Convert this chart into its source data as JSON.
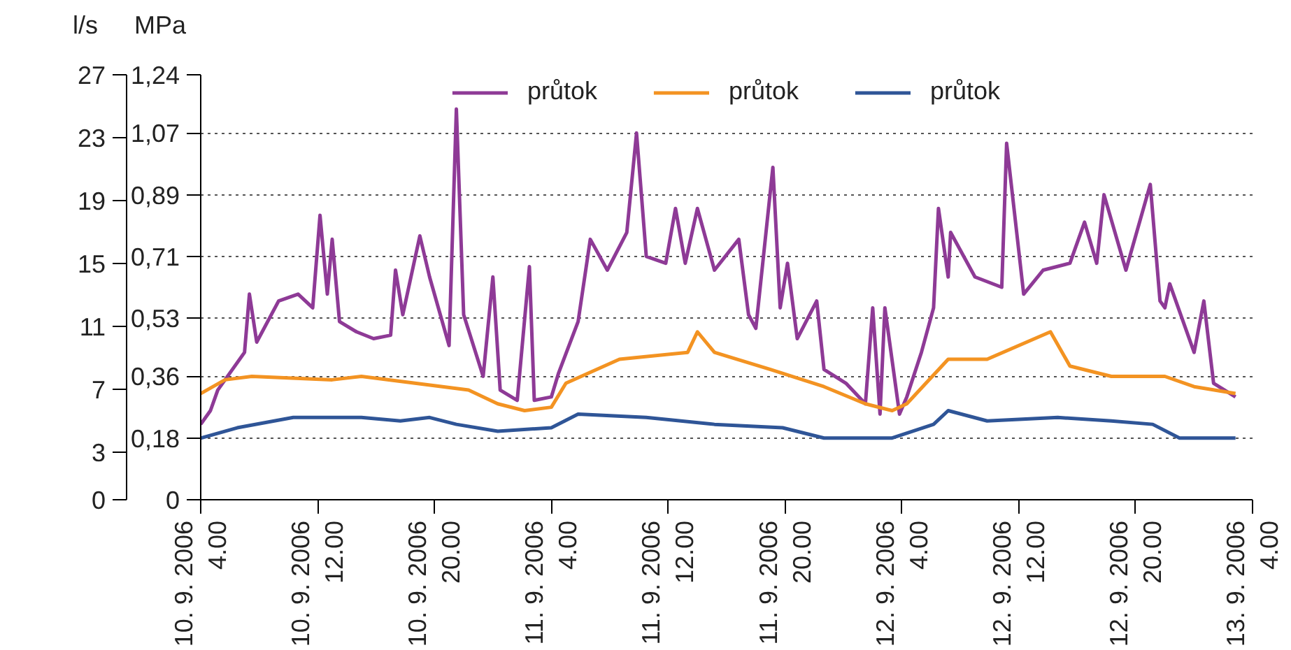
{
  "chart_data": {
    "type": "line",
    "ylabel": "MPa",
    "y2label": "l/s",
    "ylim": [
      0,
      1.24
    ],
    "yticks": [
      0,
      {
        "value": 0.18,
        "label": "0,18"
      },
      {
        "value": 0.36,
        "label": "0,36"
      },
      {
        "value": 0.53,
        "label": "0,53"
      },
      {
        "value": 0.71,
        "label": "0,71"
      },
      {
        "value": 0.89,
        "label": "0,89"
      },
      {
        "value": 1.07,
        "label": "1,07"
      },
      {
        "value": 1.24,
        "label": "1,24"
      }
    ],
    "y2lim": [
      0,
      27
    ],
    "y2ticks": [
      0,
      3,
      7,
      11,
      15,
      19,
      23,
      27
    ],
    "xlim": [
      "2006-09-10T04:00",
      "2006-09-13T04:00"
    ],
    "xticks": [
      {
        "value": "2006-09-10T04:00",
        "label": "10. 9. 2006\n4.00"
      },
      {
        "value": "2006-09-10T12:00",
        "label": "10. 9. 2006\n12.00"
      },
      {
        "value": "2006-09-10T20:00",
        "label": "10. 9. 2006\n20.00"
      },
      {
        "value": "2006-09-11T04:00",
        "label": "11. 9. 2006\n4.00"
      },
      {
        "value": "2006-09-11T12:00",
        "label": "11. 9. 2006\n12.00"
      },
      {
        "value": "2006-09-11T20:00",
        "label": "11. 9. 2006\n20.00"
      },
      {
        "value": "2006-09-12T04:00",
        "label": "12. 9. 2006\n4.00"
      },
      {
        "value": "2006-09-12T12:00",
        "label": "12. 9. 2006\n12.00"
      },
      {
        "value": "2006-09-12T20:00",
        "label": "12. 9. 2006\n20.00"
      },
      {
        "value": "2006-09-13T04:00",
        "label": "13. 9. 2006\n4.00"
      }
    ],
    "grid": "y",
    "legend": "top",
    "line_style": "solid",
    "marker": "none",
    "series": [
      {
        "name": "průtok",
        "color": "#8e3a96",
        "x": [
          "2006-09-10T04:00",
          "2006-09-10T04:40",
          "2006-09-10T05:10",
          "2006-09-10T07:00",
          "2006-09-10T07:20",
          "2006-09-10T07:50",
          "2006-09-10T09:20",
          "2006-09-10T10:40",
          "2006-09-10T11:40",
          "2006-09-10T12:10",
          "2006-09-10T12:40",
          "2006-09-10T13:00",
          "2006-09-10T13:30",
          "2006-09-10T14:40",
          "2006-09-10T15:50",
          "2006-09-10T17:00",
          "2006-09-10T17:20",
          "2006-09-10T17:50",
          "2006-09-10T19:00",
          "2006-09-10T19:40",
          "2006-09-10T21:00",
          "2006-09-10T21:30",
          "2006-09-10T22:00",
          "2006-09-10T23:20",
          "2006-09-11T00:00",
          "2006-09-11T00:30",
          "2006-09-11T01:40",
          "2006-09-11T02:30",
          "2006-09-11T02:50",
          "2006-09-11T04:00",
          "2006-09-11T04:30",
          "2006-09-11T05:50",
          "2006-09-11T06:40",
          "2006-09-11T07:50",
          "2006-09-11T09:10",
          "2006-09-11T09:50",
          "2006-09-11T10:30",
          "2006-09-11T11:50",
          "2006-09-11T12:30",
          "2006-09-11T13:10",
          "2006-09-11T14:00",
          "2006-09-11T15:10",
          "2006-09-11T16:50",
          "2006-09-11T17:30",
          "2006-09-11T18:00",
          "2006-09-11T19:10",
          "2006-09-11T19:40",
          "2006-09-11T20:10",
          "2006-09-11T20:50",
          "2006-09-11T22:10",
          "2006-09-11T22:40",
          "2006-09-12T00:10",
          "2006-09-12T01:30",
          "2006-09-12T02:00",
          "2006-09-12T02:30",
          "2006-09-12T02:50",
          "2006-09-12T03:50",
          "2006-09-12T04:20",
          "2006-09-12T05:20",
          "2006-09-12T06:10",
          "2006-09-12T06:30",
          "2006-09-12T07:10",
          "2006-09-12T07:20",
          "2006-09-12T09:00",
          "2006-09-12T10:50",
          "2006-09-12T11:10",
          "2006-09-12T12:20",
          "2006-09-12T13:40",
          "2006-09-12T15:30",
          "2006-09-12T16:30",
          "2006-09-12T17:20",
          "2006-09-12T17:50",
          "2006-09-12T19:20",
          "2006-09-12T21:00",
          "2006-09-12T21:40",
          "2006-09-12T22:00",
          "2006-09-12T22:20",
          "2006-09-13T00:00",
          "2006-09-13T00:40",
          "2006-09-13T01:20",
          "2006-09-13T02:50"
        ],
        "values": [
          0.22,
          0.26,
          0.32,
          0.43,
          0.6,
          0.46,
          0.58,
          0.6,
          0.56,
          0.83,
          0.6,
          0.76,
          0.52,
          0.49,
          0.47,
          0.48,
          0.67,
          0.54,
          0.77,
          0.65,
          0.45,
          1.14,
          0.54,
          0.36,
          0.65,
          0.32,
          0.29,
          0.68,
          0.29,
          0.3,
          0.37,
          0.52,
          0.76,
          0.67,
          0.78,
          1.07,
          0.71,
          0.69,
          0.85,
          0.69,
          0.85,
          0.67,
          0.76,
          0.54,
          0.5,
          0.97,
          0.56,
          0.69,
          0.47,
          0.58,
          0.38,
          0.34,
          0.28,
          0.56,
          0.25,
          0.56,
          0.25,
          0.3,
          0.43,
          0.56,
          0.85,
          0.65,
          0.78,
          0.65,
          0.62,
          1.04,
          0.6,
          0.67,
          0.69,
          0.81,
          0.69,
          0.89,
          0.67,
          0.92,
          0.58,
          0.56,
          0.63,
          0.43,
          0.58,
          0.34,
          0.3
        ]
      },
      {
        "name": "průtok",
        "color": "#f39322",
        "x": [
          "2006-09-10T04:00",
          "2006-09-10T05:40",
          "2006-09-10T07:30",
          "2006-09-10T13:00",
          "2006-09-10T15:00",
          "2006-09-10T18:40",
          "2006-09-10T22:20",
          "2006-09-11T00:20",
          "2006-09-11T02:10",
          "2006-09-11T04:00",
          "2006-09-11T05:00",
          "2006-09-11T08:40",
          "2006-09-11T13:20",
          "2006-09-11T14:00",
          "2006-09-11T15:10",
          "2006-09-11T19:00",
          "2006-09-11T22:40",
          "2006-09-12T01:30",
          "2006-09-12T03:20",
          "2006-09-12T04:20",
          "2006-09-12T07:10",
          "2006-09-12T09:50",
          "2006-09-12T14:10",
          "2006-09-12T15:30",
          "2006-09-12T18:20",
          "2006-09-12T22:00",
          "2006-09-13T00:00",
          "2006-09-13T02:50"
        ],
        "values": [
          0.31,
          0.35,
          0.36,
          0.35,
          0.36,
          0.34,
          0.32,
          0.28,
          0.26,
          0.27,
          0.34,
          0.41,
          0.43,
          0.49,
          0.43,
          0.38,
          0.33,
          0.28,
          0.26,
          0.28,
          0.41,
          0.41,
          0.49,
          0.39,
          0.36,
          0.36,
          0.33,
          0.31
        ]
      },
      {
        "name": "průtok",
        "color": "#2f5597",
        "x": [
          "2006-09-10T04:00",
          "2006-09-10T06:30",
          "2006-09-10T10:20",
          "2006-09-10T15:00",
          "2006-09-10T17:40",
          "2006-09-10T19:40",
          "2006-09-10T21:30",
          "2006-09-11T00:20",
          "2006-09-11T04:00",
          "2006-09-11T05:50",
          "2006-09-11T10:30",
          "2006-09-11T15:10",
          "2006-09-11T19:50",
          "2006-09-11T22:40",
          "2006-09-12T03:20",
          "2006-09-12T06:10",
          "2006-09-12T07:10",
          "2006-09-12T09:50",
          "2006-09-12T14:40",
          "2006-09-12T18:20",
          "2006-09-12T21:10",
          "2006-09-12T23:00",
          "2006-09-13T02:50"
        ],
        "values": [
          0.18,
          0.21,
          0.24,
          0.24,
          0.23,
          0.24,
          0.22,
          0.2,
          0.21,
          0.25,
          0.24,
          0.22,
          0.21,
          0.18,
          0.18,
          0.22,
          0.26,
          0.23,
          0.24,
          0.23,
          0.22,
          0.18,
          0.18
        ]
      }
    ]
  }
}
